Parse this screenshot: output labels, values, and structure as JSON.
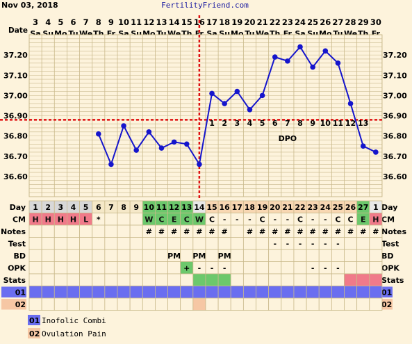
{
  "header": {
    "date": "Nov 03, 2018",
    "site": "FertilityFriend.com"
  },
  "labels": {
    "date": "Date",
    "day": "Day",
    "cm": "CM",
    "notes": "Notes",
    "test": "Test",
    "bd": "BD",
    "opk": "OPK",
    "stats": "Stats",
    "dpo": "DPO",
    "row01": "01",
    "row02": "02"
  },
  "dates": [
    "3",
    "4",
    "5",
    "6",
    "7",
    "8",
    "9",
    "10",
    "11",
    "12",
    "13",
    "14",
    "15",
    "16",
    "17",
    "18",
    "19",
    "20",
    "21",
    "22",
    "23",
    "24",
    "25",
    "26",
    "27",
    "28",
    "29",
    "30"
  ],
  "weekdays": [
    "Sa",
    "Su",
    "Mo",
    "Tu",
    "We",
    "Th",
    "Fr",
    "Sa",
    "Su",
    "Mo",
    "Tu",
    "We",
    "Th",
    "Fr",
    "Sa",
    "Su",
    "Mo",
    "Tu",
    "We",
    "Th",
    "Fr",
    "Sa",
    "Su",
    "Mo",
    "Tu",
    "We",
    "Th",
    "Fr"
  ],
  "cycle_days": [
    "1",
    "2",
    "3",
    "4",
    "5",
    "6",
    "7",
    "8",
    "9",
    "10",
    "11",
    "12",
    "13",
    "14",
    "15",
    "16",
    "17",
    "18",
    "19",
    "20",
    "21",
    "22",
    "23",
    "24",
    "25",
    "26",
    "27",
    "1"
  ],
  "cm": [
    "H",
    "H",
    "H",
    "H",
    "L",
    "*",
    "",
    "",
    "",
    "W",
    "C",
    "E",
    "C",
    "W",
    "C",
    "-",
    "-",
    "-",
    "C",
    "-",
    "-",
    "C",
    "-",
    "-",
    "C",
    "C",
    "E",
    "H"
  ],
  "notes": [
    "",
    "",
    "",
    "",
    "",
    "",
    "",
    "",
    "",
    "#",
    "#",
    "#",
    "#",
    "#",
    "#",
    "#",
    "",
    "#",
    "#",
    "#",
    "#",
    "#",
    "#",
    "#",
    "#",
    "#",
    "#",
    "#"
  ],
  "test": [
    "",
    "",
    "",
    "",
    "",
    "",
    "",
    "",
    "",
    "",
    "",
    "",
    "",
    "",
    "",
    "",
    "",
    "",
    "",
    "-",
    "-",
    "-",
    "-",
    "-",
    "-",
    "",
    "",
    ""
  ],
  "bd": [
    "",
    "",
    "",
    "",
    "",
    "",
    "",
    "",
    "",
    "",
    "",
    "PM",
    "",
    "PM",
    "",
    "PM",
    "",
    "",
    "",
    "",
    "",
    "",
    "",
    "",
    "",
    "",
    "",
    ""
  ],
  "opk": [
    "",
    "",
    "",
    "",
    "",
    "",
    "",
    "",
    "",
    "",
    "",
    "",
    "+",
    "-",
    "-",
    "-",
    "",
    "",
    "",
    "",
    "",
    "",
    "-",
    "-",
    "-",
    "",
    "",
    ""
  ],
  "dpo_numbers": [
    "1",
    "2",
    "3",
    "4",
    "5",
    "6",
    "7",
    "8",
    "9",
    "10",
    "11",
    "12",
    "13"
  ],
  "chart_data": {
    "type": "line",
    "x": [
      "3",
      "4",
      "5",
      "6",
      "7",
      "8",
      "9",
      "10",
      "11",
      "12",
      "13",
      "14",
      "15",
      "16",
      "17",
      "18",
      "19",
      "20",
      "21",
      "22",
      "23",
      "24",
      "25",
      "26",
      "27",
      "28",
      "29",
      "30"
    ],
    "series": [
      {
        "values": [
          null,
          null,
          null,
          null,
          null,
          36.81,
          36.66,
          36.85,
          36.73,
          36.82,
          36.74,
          36.77,
          36.76,
          36.66,
          37.01,
          36.96,
          37.02,
          36.93,
          37.0,
          37.19,
          37.17,
          37.24,
          37.14,
          37.22,
          37.16,
          36.96,
          36.75,
          36.72
        ]
      }
    ],
    "y_ticks": [
      "37.20",
      "37.10",
      "37.00",
      "36.90",
      "36.80",
      "36.70",
      "36.60"
    ],
    "ylim": [
      36.5,
      37.3
    ],
    "coverline": 36.88,
    "ovulation_day": "16",
    "line_color": "#1515cc",
    "coverline_color": "#e01010"
  },
  "legend": [
    {
      "code": "01",
      "label": "Inofolic Combi",
      "color": "#6a6ef0"
    },
    {
      "code": "02",
      "label": "Ovulation Pain",
      "color": "#f6c7a4"
    }
  ],
  "colors": {
    "bg": "#fdf3dc",
    "grid": "#c9b98b",
    "cm_red": "#f07a8a",
    "green": "#6cc86c",
    "orange_day": "#f8d7b2",
    "pink_stats": "#f07a8a",
    "blue_row": "#6a6ef0",
    "peach": "#f6c7a4"
  }
}
